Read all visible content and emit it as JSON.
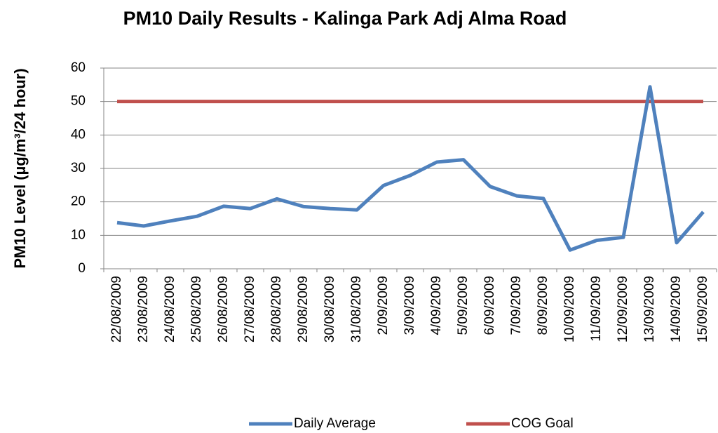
{
  "chart_data": {
    "type": "line",
    "title": "PM10 Daily Results - Kalinga Park Adj Alma Road",
    "y_label": "PM10 Level (µg/m³/24 hour)",
    "categories": [
      "22/08/2009",
      "23/08/2009",
      "24/08/2009",
      "25/08/2009",
      "26/08/2009",
      "27/08/2009",
      "28/08/2009",
      "29/08/2009",
      "30/08/2009",
      "31/08/2009",
      "2/09/2009",
      "3/09/2009",
      "4/09/2009",
      "5/09/2009",
      "6/09/2009",
      "7/09/2009",
      "8/09/2009",
      "10/09/2009",
      "11/09/2009",
      "12/09/2009",
      "13/09/2009",
      "14/09/2009",
      "15/09/2009"
    ],
    "series": [
      {
        "name": "Daily Average",
        "color": "#4f81bd",
        "values": [
          13.8,
          12.8,
          14.3,
          15.7,
          18.7,
          18.0,
          20.9,
          18.6,
          18.0,
          17.6,
          24.9,
          27.9,
          31.9,
          32.6,
          24.6,
          21.8,
          21.0,
          5.6,
          8.5,
          9.4,
          54.4,
          7.8,
          17.0
        ]
      },
      {
        "name": "COG Goal",
        "color": "#c0504d",
        "values": [
          50,
          50,
          50,
          50,
          50,
          50,
          50,
          50,
          50,
          50,
          50,
          50,
          50,
          50,
          50,
          50,
          50,
          50,
          50,
          50,
          50,
          50,
          50
        ]
      }
    ],
    "ylim": [
      0,
      60
    ],
    "yticks": [
      0,
      10,
      20,
      30,
      40,
      50,
      60
    ],
    "grid": true,
    "legend": "bottom"
  }
}
